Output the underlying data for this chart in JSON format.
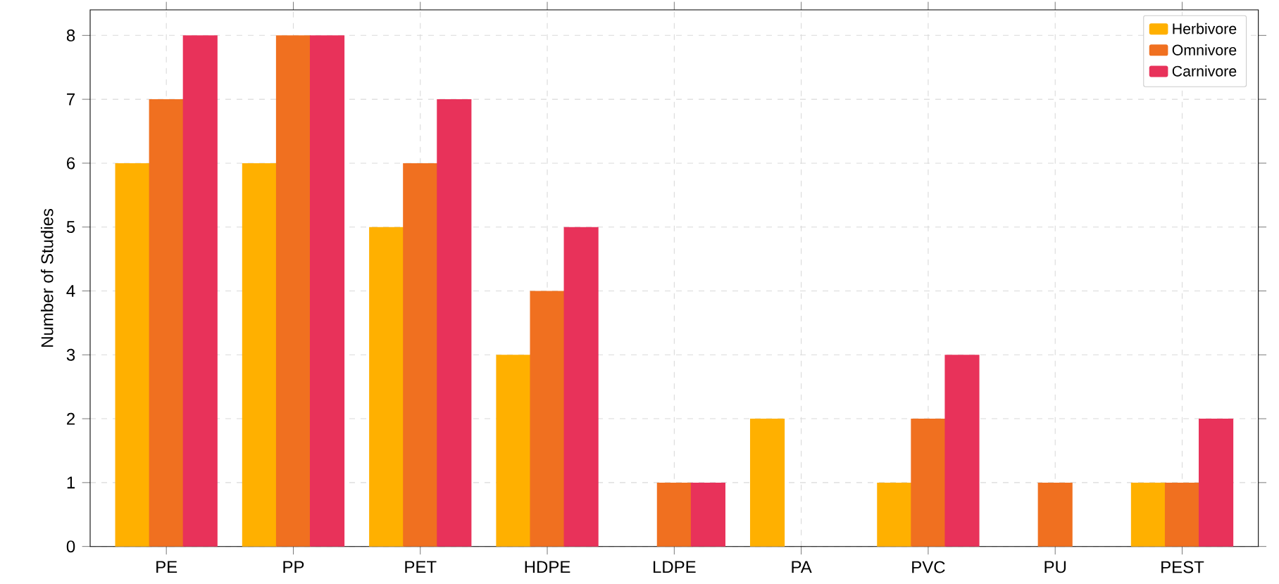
{
  "chart_data": {
    "type": "bar",
    "ylabel": "Number of Studies",
    "categories": [
      "PE",
      "PP",
      "PET",
      "HDPE",
      "LDPE",
      "PA",
      "PVC",
      "PU",
      "PEST"
    ],
    "series": [
      {
        "name": "Herbivore",
        "color": "#ffb000",
        "values": [
          6,
          6,
          5,
          3,
          0,
          2,
          1,
          0,
          1
        ]
      },
      {
        "name": "Omnivore",
        "color": "#f07020",
        "values": [
          7,
          8,
          6,
          4,
          1,
          0,
          2,
          1,
          1
        ]
      },
      {
        "name": "Carnivore",
        "color": "#e8325a",
        "values": [
          8,
          8,
          7,
          5,
          1,
          0,
          3,
          0,
          2
        ]
      }
    ],
    "ylim": [
      0,
      8.4
    ],
    "yticks": [
      0,
      1,
      2,
      3,
      4,
      5,
      6,
      7,
      8
    ],
    "grid": true,
    "legend": "top right"
  }
}
